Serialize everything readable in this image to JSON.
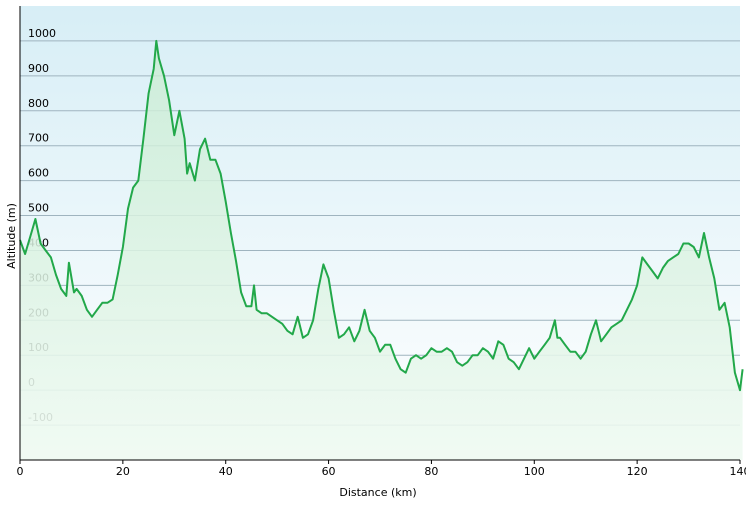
{
  "chart_data": {
    "type": "line",
    "xlabel": "Distance  (km)",
    "ylabel": "Altitude (m)",
    "x": [
      0,
      1,
      2,
      3,
      4,
      5,
      6,
      7,
      8,
      9,
      9.5,
      10.5,
      11,
      12,
      13,
      14,
      15,
      16,
      17,
      18,
      19,
      20,
      21,
      22,
      23,
      24,
      25,
      26,
      26.5,
      27,
      28,
      29,
      30,
      31,
      32,
      32.5,
      33,
      34,
      35,
      36,
      37,
      38,
      39,
      40,
      41,
      42,
      43,
      44,
      45,
      45.5,
      46,
      47,
      48,
      49,
      50,
      51,
      52,
      53,
      54,
      55,
      56,
      57,
      58,
      59,
      60,
      61,
      62,
      63,
      64,
      65,
      66,
      67,
      68,
      69,
      70,
      71,
      72,
      73,
      74,
      75,
      76,
      77,
      78,
      79,
      80,
      81,
      82,
      83,
      84,
      85,
      86,
      87,
      88,
      89,
      90,
      91,
      92,
      93,
      94,
      95,
      96,
      97,
      98,
      99,
      100,
      101,
      102,
      103,
      104,
      104.5,
      105,
      106,
      107,
      108,
      109,
      110,
      111,
      112,
      113,
      114,
      115,
      116,
      117,
      118,
      119,
      120,
      121,
      122,
      123,
      124,
      125,
      126,
      127,
      128,
      129,
      130,
      131,
      132,
      133,
      134,
      135,
      136,
      137,
      138,
      139,
      140,
      140.5
    ],
    "series": [
      {
        "name": "Altitude",
        "color": "#22a84a",
        "values": [
          430,
          390,
          440,
          490,
          420,
          400,
          380,
          330,
          290,
          270,
          365,
          280,
          290,
          270,
          230,
          210,
          230,
          250,
          250,
          260,
          330,
          410,
          520,
          580,
          600,
          720,
          850,
          920,
          1000,
          950,
          900,
          830,
          730,
          800,
          720,
          620,
          650,
          600,
          690,
          720,
          660,
          660,
          620,
          540,
          450,
          370,
          280,
          240,
          240,
          300,
          230,
          220,
          220,
          210,
          200,
          190,
          170,
          160,
          210,
          150,
          160,
          200,
          290,
          360,
          320,
          230,
          150,
          160,
          180,
          140,
          170,
          230,
          170,
          150,
          110,
          130,
          130,
          90,
          60,
          50,
          90,
          100,
          90,
          100,
          120,
          110,
          110,
          120,
          110,
          80,
          70,
          80,
          100,
          100,
          120,
          110,
          90,
          140,
          130,
          90,
          80,
          60,
          90,
          120,
          90,
          110,
          130,
          150,
          200,
          150,
          150,
          130,
          110,
          110,
          90,
          110,
          160,
          200,
          140,
          160,
          180,
          190,
          200,
          230,
          260,
          300,
          380,
          360,
          340,
          320,
          350,
          370,
          380,
          390,
          420,
          420,
          410,
          380,
          450,
          380,
          320,
          230,
          250,
          180,
          50,
          0,
          60
        ]
      }
    ],
    "xlim": [
      0,
      140
    ],
    "ylim": [
      -200,
      1100
    ],
    "xticks": [
      0,
      20,
      40,
      60,
      80,
      100,
      120,
      140
    ],
    "yticks": [
      -100,
      0,
      100,
      200,
      300,
      400,
      500,
      600,
      700,
      800,
      900,
      1000
    ],
    "grid": true
  }
}
